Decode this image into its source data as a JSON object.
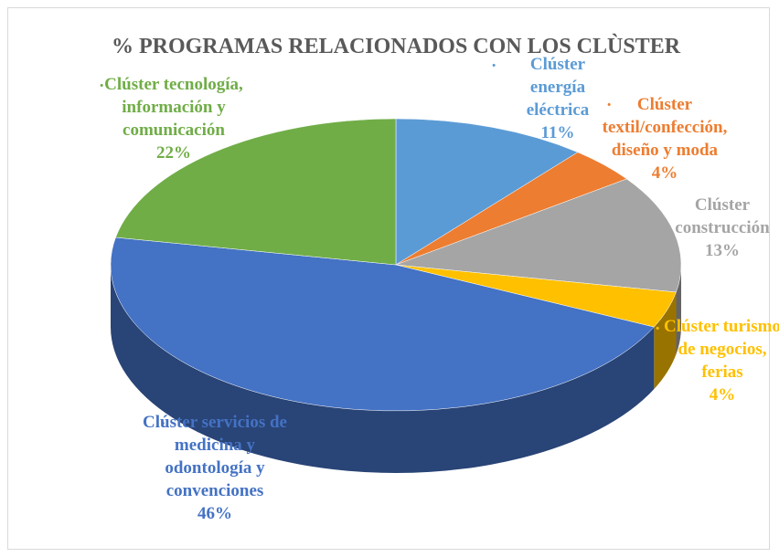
{
  "chart_data": {
    "type": "pie",
    "title": "% PROGRAMAS RELACIONADOS CON LOS CLÙSTER",
    "categories": [
      "Clúster energía eléctrica",
      "Clúster textil/confección, diseño y moda",
      "Clúster construcción",
      "Clúster turismo de negocios, ferias",
      "Clúster servicios de medicina y odontología y convenciones",
      "Clúster tecnología, información y comunicación"
    ],
    "values": [
      11,
      4,
      13,
      4,
      46,
      22
    ],
    "value_labels": [
      "11%",
      "4%",
      "13%",
      "4%",
      "46%",
      "22%"
    ],
    "colors": [
      "#5b9bd5",
      "#ed7d31",
      "#a5a5a5",
      "#ffc000",
      "#4472c4",
      "#70ad47"
    ]
  }
}
